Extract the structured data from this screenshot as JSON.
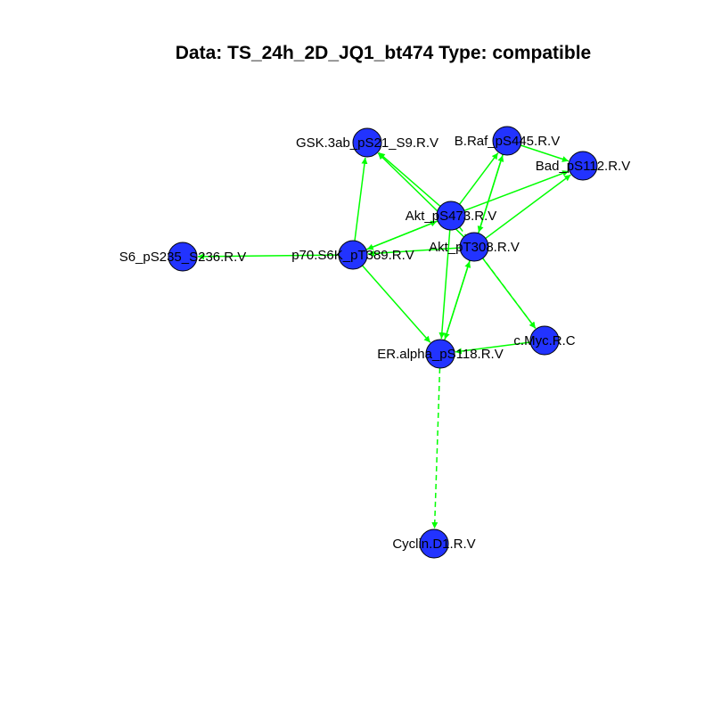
{
  "title": "Data: TS_24h_2D_JQ1_bt474 Type: compatible",
  "colors": {
    "node_fill": "#2233ff",
    "edge": "#00ff00",
    "node_stroke": "#000000"
  },
  "nodes": [
    {
      "id": "gsk",
      "label": "GSK.3ab_pS21_S9.R.V"
    },
    {
      "id": "braf",
      "label": "B.Raf_pS445.R.V"
    },
    {
      "id": "bad",
      "label": "Bad_pS112.R.V"
    },
    {
      "id": "akt473",
      "label": "Akt_pS473.R.V"
    },
    {
      "id": "s6",
      "label": "S6_pS235_S236.R.V"
    },
    {
      "id": "p70",
      "label": "p70.S6K_pT389.R.V"
    },
    {
      "id": "akt308",
      "label": "Akt_pT308.R.V"
    },
    {
      "id": "myc",
      "label": "c.Myc.R.C"
    },
    {
      "id": "er",
      "label": "ER.alpha_pS118.R.V"
    },
    {
      "id": "cyclin",
      "label": "Cyclin.D1.R.V"
    }
  ],
  "edges": [
    {
      "from": "akt473",
      "to": "gsk",
      "style": "solid"
    },
    {
      "from": "akt308",
      "to": "gsk",
      "style": "solid"
    },
    {
      "from": "p70",
      "to": "gsk",
      "style": "solid"
    },
    {
      "from": "akt473",
      "to": "braf",
      "style": "solid"
    },
    {
      "from": "akt308",
      "to": "braf",
      "style": "solid"
    },
    {
      "from": "braf",
      "to": "akt308",
      "style": "solid"
    },
    {
      "from": "braf",
      "to": "bad",
      "style": "solid"
    },
    {
      "from": "akt473",
      "to": "bad",
      "style": "solid"
    },
    {
      "from": "akt308",
      "to": "bad",
      "style": "solid"
    },
    {
      "from": "p70",
      "to": "akt473",
      "style": "solid"
    },
    {
      "from": "akt473",
      "to": "p70",
      "style": "solid"
    },
    {
      "from": "akt308",
      "to": "p70",
      "style": "solid"
    },
    {
      "from": "p70",
      "to": "s6",
      "style": "solid"
    },
    {
      "from": "p70",
      "to": "er",
      "style": "solid"
    },
    {
      "from": "akt473",
      "to": "er",
      "style": "solid"
    },
    {
      "from": "akt308",
      "to": "er",
      "style": "solid"
    },
    {
      "from": "er",
      "to": "akt308",
      "style": "solid"
    },
    {
      "from": "akt473",
      "to": "myc",
      "style": "dashed"
    },
    {
      "from": "akt308",
      "to": "myc",
      "style": "solid"
    },
    {
      "from": "myc",
      "to": "er",
      "style": "solid"
    },
    {
      "from": "er",
      "to": "cyclin",
      "style": "dashed"
    }
  ]
}
